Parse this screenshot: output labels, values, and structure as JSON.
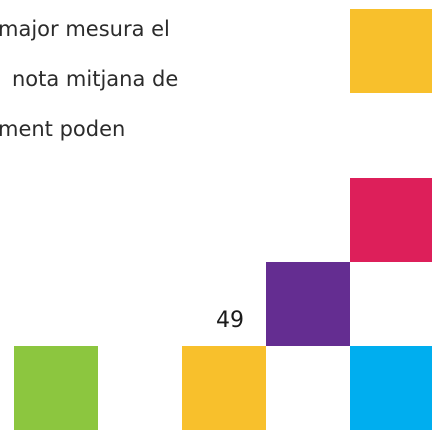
{
  "body": {
    "lines": [
      "major mesura el",
      "nota mitjana de",
      "ment poden"
    ]
  },
  "footer": {
    "page_number": "49"
  }
}
